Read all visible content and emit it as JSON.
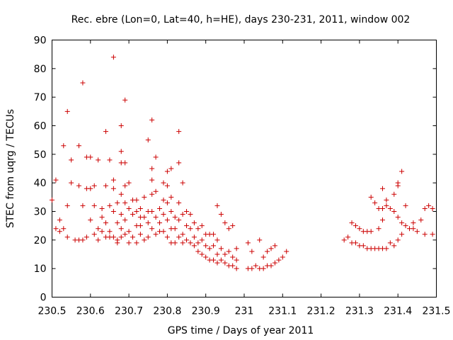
{
  "chart_data": {
    "type": "scatter",
    "title": "Rec. ebre (Lon=0, Lat=40, h=HE), days 230-231, 2011, window 002",
    "xlabel": "GPS time / Days of year 2011",
    "ylabel": "STEC from uqrg / TECUs",
    "xlim": [
      230.5,
      231.5
    ],
    "ylim": [
      0,
      90
    ],
    "xticks": [
      "230.5",
      "230.6",
      "230.7",
      "230.8",
      "230.9",
      "231",
      "231.1",
      "231.2",
      "231.3",
      "231.4",
      "231.5"
    ],
    "yticks": [
      "0",
      "10",
      "20",
      "30",
      "40",
      "50",
      "60",
      "70",
      "80",
      "90"
    ],
    "grid": false,
    "marker": "+",
    "color": "#cc0000",
    "points": [
      [
        230.5,
        34
      ],
      [
        230.51,
        41
      ],
      [
        230.51,
        24
      ],
      [
        230.52,
        27
      ],
      [
        230.52,
        23
      ],
      [
        230.53,
        53
      ],
      [
        230.53,
        24
      ],
      [
        230.54,
        65
      ],
      [
        230.54,
        32
      ],
      [
        230.54,
        21
      ],
      [
        230.55,
        40
      ],
      [
        230.55,
        48
      ],
      [
        230.56,
        20
      ],
      [
        230.57,
        39
      ],
      [
        230.57,
        53
      ],
      [
        230.57,
        20
      ],
      [
        230.58,
        75
      ],
      [
        230.58,
        32
      ],
      [
        230.58,
        20
      ],
      [
        230.59,
        21
      ],
      [
        230.59,
        38
      ],
      [
        230.59,
        49
      ],
      [
        230.6,
        49
      ],
      [
        230.6,
        27
      ],
      [
        230.6,
        38
      ],
      [
        230.61,
        32
      ],
      [
        230.61,
        39
      ],
      [
        230.61,
        22
      ],
      [
        230.62,
        24
      ],
      [
        230.62,
        20
      ],
      [
        230.62,
        48
      ],
      [
        230.63,
        28
      ],
      [
        230.63,
        23
      ],
      [
        230.63,
        31
      ],
      [
        230.64,
        58
      ],
      [
        230.64,
        39
      ],
      [
        230.64,
        26
      ],
      [
        230.64,
        21
      ],
      [
        230.65,
        32
      ],
      [
        230.65,
        48
      ],
      [
        230.65,
        23
      ],
      [
        230.65,
        21
      ],
      [
        230.66,
        84
      ],
      [
        230.66,
        41
      ],
      [
        230.66,
        38
      ],
      [
        230.66,
        30
      ],
      [
        230.66,
        21
      ],
      [
        230.67,
        20
      ],
      [
        230.67,
        19
      ],
      [
        230.67,
        26
      ],
      [
        230.67,
        33
      ],
      [
        230.68,
        60
      ],
      [
        230.68,
        51
      ],
      [
        230.68,
        47
      ],
      [
        230.68,
        36
      ],
      [
        230.68,
        29
      ],
      [
        230.68,
        24
      ],
      [
        230.68,
        21
      ],
      [
        230.69,
        69
      ],
      [
        230.69,
        47
      ],
      [
        230.69,
        39
      ],
      [
        230.69,
        33
      ],
      [
        230.69,
        27
      ],
      [
        230.69,
        22
      ],
      [
        230.7,
        40
      ],
      [
        230.7,
        19
      ],
      [
        230.7,
        31
      ],
      [
        230.7,
        23
      ],
      [
        230.71,
        34
      ],
      [
        230.71,
        29
      ],
      [
        230.71,
        21
      ],
      [
        230.72,
        34
      ],
      [
        230.72,
        30
      ],
      [
        230.72,
        25
      ],
      [
        230.72,
        19
      ],
      [
        230.73,
        28
      ],
      [
        230.73,
        31
      ],
      [
        230.73,
        25
      ],
      [
        230.73,
        22
      ],
      [
        230.74,
        20
      ],
      [
        230.74,
        35
      ],
      [
        230.74,
        28
      ],
      [
        230.75,
        55
      ],
      [
        230.75,
        30
      ],
      [
        230.75,
        26
      ],
      [
        230.75,
        21
      ],
      [
        230.76,
        62
      ],
      [
        230.76,
        45
      ],
      [
        230.76,
        41
      ],
      [
        230.76,
        36
      ],
      [
        230.76,
        30
      ],
      [
        230.76,
        24
      ],
      [
        230.77,
        49
      ],
      [
        230.77,
        37
      ],
      [
        230.77,
        28
      ],
      [
        230.77,
        22
      ],
      [
        230.78,
        31
      ],
      [
        230.78,
        26
      ],
      [
        230.78,
        23
      ],
      [
        230.79,
        40
      ],
      [
        230.79,
        34
      ],
      [
        230.79,
        29
      ],
      [
        230.79,
        23
      ],
      [
        230.8,
        44
      ],
      [
        230.8,
        39
      ],
      [
        230.8,
        33
      ],
      [
        230.8,
        27
      ],
      [
        230.8,
        21
      ],
      [
        230.81,
        45
      ],
      [
        230.81,
        35
      ],
      [
        230.81,
        30
      ],
      [
        230.81,
        24
      ],
      [
        230.81,
        19
      ],
      [
        230.82,
        28
      ],
      [
        230.82,
        24
      ],
      [
        230.82,
        19
      ],
      [
        230.83,
        58
      ],
      [
        230.83,
        47
      ],
      [
        230.83,
        33
      ],
      [
        230.83,
        27
      ],
      [
        230.83,
        21
      ],
      [
        230.84,
        40
      ],
      [
        230.84,
        29
      ],
      [
        230.84,
        22
      ],
      [
        230.84,
        19
      ],
      [
        230.85,
        30
      ],
      [
        230.85,
        25
      ],
      [
        230.85,
        20
      ],
      [
        230.86,
        29
      ],
      [
        230.86,
        24
      ],
      [
        230.86,
        19
      ],
      [
        230.87,
        26
      ],
      [
        230.87,
        21
      ],
      [
        230.87,
        18
      ],
      [
        230.88,
        24
      ],
      [
        230.88,
        19
      ],
      [
        230.88,
        16
      ],
      [
        230.89,
        25
      ],
      [
        230.89,
        20
      ],
      [
        230.89,
        15
      ],
      [
        230.9,
        22
      ],
      [
        230.9,
        18
      ],
      [
        230.9,
        14
      ],
      [
        230.91,
        22
      ],
      [
        230.91,
        17
      ],
      [
        230.91,
        13
      ],
      [
        230.92,
        22
      ],
      [
        230.92,
        18
      ],
      [
        230.92,
        13
      ],
      [
        230.93,
        32
      ],
      [
        230.93,
        20
      ],
      [
        230.93,
        15
      ],
      [
        230.93,
        12
      ],
      [
        230.94,
        29
      ],
      [
        230.94,
        17
      ],
      [
        230.94,
        13
      ],
      [
        230.95,
        26
      ],
      [
        230.95,
        15
      ],
      [
        230.95,
        12
      ],
      [
        230.96,
        24
      ],
      [
        230.96,
        16
      ],
      [
        230.96,
        11
      ],
      [
        230.97,
        25
      ],
      [
        230.97,
        14
      ],
      [
        230.97,
        11
      ],
      [
        230.98,
        17
      ],
      [
        230.98,
        13
      ],
      [
        230.98,
        10
      ],
      [
        231.01,
        19
      ],
      [
        231.01,
        10
      ],
      [
        231.02,
        16
      ],
      [
        231.02,
        10
      ],
      [
        231.03,
        11
      ],
      [
        231.04,
        20
      ],
      [
        231.04,
        10
      ],
      [
        231.05,
        14
      ],
      [
        231.05,
        10
      ],
      [
        231.06,
        16
      ],
      [
        231.06,
        11
      ],
      [
        231.07,
        17
      ],
      [
        231.07,
        11
      ],
      [
        231.08,
        18
      ],
      [
        231.08,
        12
      ],
      [
        231.09,
        13
      ],
      [
        231.1,
        14
      ],
      [
        231.11,
        16
      ],
      [
        231.26,
        20
      ],
      [
        231.27,
        21
      ],
      [
        231.28,
        26
      ],
      [
        231.28,
        19
      ],
      [
        231.29,
        25
      ],
      [
        231.29,
        19
      ],
      [
        231.3,
        24
      ],
      [
        231.3,
        18
      ],
      [
        231.31,
        23
      ],
      [
        231.31,
        18
      ],
      [
        231.32,
        23
      ],
      [
        231.32,
        17
      ],
      [
        231.33,
        35
      ],
      [
        231.33,
        23
      ],
      [
        231.33,
        17
      ],
      [
        231.34,
        33
      ],
      [
        231.34,
        17
      ],
      [
        231.35,
        31
      ],
      [
        231.35,
        24
      ],
      [
        231.35,
        17
      ],
      [
        231.36,
        38
      ],
      [
        231.36,
        31
      ],
      [
        231.36,
        27
      ],
      [
        231.36,
        17
      ],
      [
        231.37,
        32
      ],
      [
        231.37,
        34
      ],
      [
        231.37,
        17
      ],
      [
        231.38,
        31
      ],
      [
        231.38,
        19
      ],
      [
        231.39,
        36
      ],
      [
        231.39,
        30
      ],
      [
        231.39,
        18
      ],
      [
        231.4,
        40
      ],
      [
        231.4,
        39
      ],
      [
        231.4,
        28
      ],
      [
        231.4,
        20
      ],
      [
        231.41,
        44
      ],
      [
        231.41,
        26
      ],
      [
        231.41,
        22
      ],
      [
        231.42,
        32
      ],
      [
        231.42,
        25
      ],
      [
        231.43,
        24
      ],
      [
        231.44,
        26
      ],
      [
        231.44,
        24
      ],
      [
        231.45,
        23
      ],
      [
        231.46,
        27
      ],
      [
        231.47,
        31
      ],
      [
        231.47,
        22
      ],
      [
        231.48,
        32
      ],
      [
        231.49,
        31
      ],
      [
        231.49,
        22
      ]
    ]
  }
}
